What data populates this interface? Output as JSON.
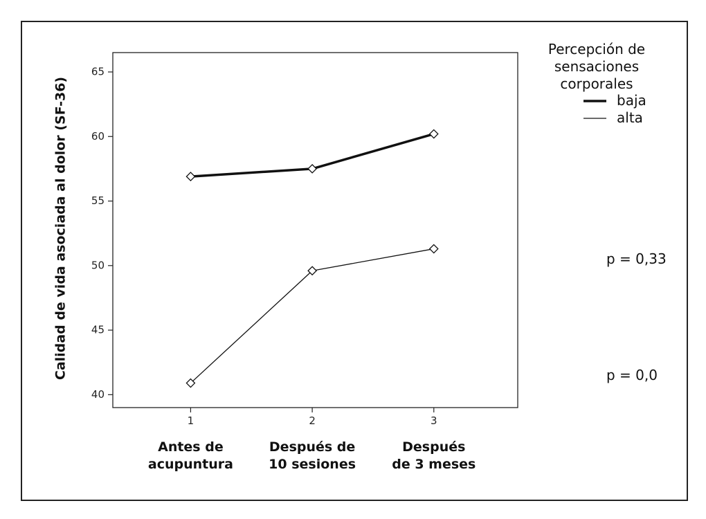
{
  "chart_data": {
    "type": "line",
    "title": "",
    "ylabel": "Calidad de vida asociada al dolor (SF-36)",
    "xlabel": "",
    "x": [
      1,
      2,
      3
    ],
    "x_tick_labels": [
      "1",
      "2",
      "3"
    ],
    "categories": [
      [
        "Antes de",
        "acupuntura"
      ],
      [
        "Después de",
        "10 sesiones"
      ],
      [
        "Después",
        "de 3 meses"
      ]
    ],
    "ylim": [
      39,
      66.5
    ],
    "xlim": [
      0.36,
      3.69
    ],
    "yticks": [
      40,
      45,
      50,
      55,
      60,
      65
    ],
    "grid": false,
    "legend": {
      "title": [
        "Percepción de",
        "sensaciones",
        "corporales"
      ],
      "placement": "top-right-outside"
    },
    "series": [
      {
        "name": "baja",
        "values": [
          56.9,
          57.5,
          60.2
        ],
        "line_width": "thick",
        "marker": "diamond"
      },
      {
        "name": "alta",
        "values": [
          40.9,
          49.6,
          51.3
        ],
        "line_width": "thin",
        "marker": "diamond"
      }
    ],
    "annotations": [
      "p = 0,33",
      "p = 0,0"
    ]
  }
}
